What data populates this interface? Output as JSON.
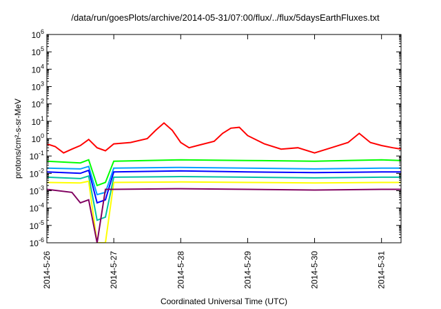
{
  "chart_data": {
    "type": "line",
    "title": "/data/run/goesPlots/archive/2014-05-31/07:00/flux/../flux/5daysEarthFluxes.txt",
    "ylabel": "protons/cm²-s-sr-MeV",
    "xlabel": "Coordinated Universal Time (UTC)",
    "y_scale": "log",
    "ylim": [
      1e-06,
      1000000.0
    ],
    "y_ticks": [
      {
        "value": 1e-06,
        "base": "10",
        "exp": "-6"
      },
      {
        "value": 1e-05,
        "base": "10",
        "exp": "-5"
      },
      {
        "value": 0.0001,
        "base": "10",
        "exp": "-4"
      },
      {
        "value": 0.001,
        "base": "10",
        "exp": "-3"
      },
      {
        "value": 0.01,
        "base": "10",
        "exp": "-2"
      },
      {
        "value": 0.1,
        "base": "10",
        "exp": "-1"
      },
      {
        "value": 1.0,
        "base": "10",
        "exp": "0"
      },
      {
        "value": 10.0,
        "base": "10",
        "exp": "1"
      },
      {
        "value": 100.0,
        "base": "10",
        "exp": "2"
      },
      {
        "value": 1000.0,
        "base": "10",
        "exp": "3"
      },
      {
        "value": 10000.0,
        "base": "10",
        "exp": "4"
      },
      {
        "value": 100000.0,
        "base": "10",
        "exp": "5"
      },
      {
        "value": 1000000.0,
        "base": "10",
        "exp": "6"
      }
    ],
    "x_domain": [
      "2014-05-26",
      "2014-05-31T07:00"
    ],
    "x_ticks": [
      "2014-5-26",
      "2014-5-27",
      "2014-5-28",
      "2014-5-29",
      "2014-5-30",
      "2014-5-31"
    ],
    "grid": false,
    "legend": "none",
    "series": [
      {
        "color": "#ff0000",
        "data": [
          [
            "2014-05-26T00:00",
            0.5
          ],
          [
            "2014-05-26T03:00",
            0.35
          ],
          [
            "2014-05-26T06:00",
            0.15
          ],
          [
            "2014-05-26T09:00",
            0.25
          ],
          [
            "2014-05-26T12:00",
            0.4
          ],
          [
            "2014-05-26T15:00",
            0.9
          ],
          [
            "2014-05-26T18:00",
            0.3
          ],
          [
            "2014-05-26T21:00",
            0.2
          ],
          [
            "2014-05-27T00:00",
            0.5
          ],
          [
            "2014-05-27T06:00",
            0.6
          ],
          [
            "2014-05-27T12:00",
            1.0
          ],
          [
            "2014-05-27T15:00",
            3.0
          ],
          [
            "2014-05-27T18:00",
            8.0
          ],
          [
            "2014-05-27T21:00",
            3.0
          ],
          [
            "2014-05-28T00:00",
            0.6
          ],
          [
            "2014-05-28T03:00",
            0.3
          ],
          [
            "2014-05-28T06:00",
            0.4
          ],
          [
            "2014-05-28T12:00",
            0.7
          ],
          [
            "2014-05-28T15:00",
            2.0
          ],
          [
            "2014-05-28T18:00",
            4.0
          ],
          [
            "2014-05-28T21:00",
            4.5
          ],
          [
            "2014-05-29T00:00",
            1.5
          ],
          [
            "2014-05-29T06:00",
            0.5
          ],
          [
            "2014-05-29T12:00",
            0.25
          ],
          [
            "2014-05-29T18:00",
            0.3
          ],
          [
            "2014-05-30T00:00",
            0.15
          ],
          [
            "2014-05-30T06:00",
            0.3
          ],
          [
            "2014-05-30T12:00",
            0.6
          ],
          [
            "2014-05-30T16:00",
            2.0
          ],
          [
            "2014-05-30T20:00",
            0.6
          ],
          [
            "2014-05-31T00:00",
            0.4
          ],
          [
            "2014-05-31T04:00",
            0.3
          ],
          [
            "2014-05-31T07:00",
            0.25
          ]
        ]
      },
      {
        "color": "#00ff00",
        "data": [
          [
            "2014-05-26T00:00",
            0.05
          ],
          [
            "2014-05-26T12:00",
            0.04
          ],
          [
            "2014-05-26T15:00",
            0.06
          ],
          [
            "2014-05-26T18:00",
            0.002
          ],
          [
            "2014-05-26T21:00",
            0.003
          ],
          [
            "2014-05-27T00:00",
            0.05
          ],
          [
            "2014-05-28T00:00",
            0.06
          ],
          [
            "2014-05-29T00:00",
            0.055
          ],
          [
            "2014-05-30T00:00",
            0.05
          ],
          [
            "2014-05-31T00:00",
            0.06
          ],
          [
            "2014-05-31T07:00",
            0.055
          ]
        ]
      },
      {
        "color": "#00a0ff",
        "data": [
          [
            "2014-05-26T00:00",
            0.02
          ],
          [
            "2014-05-26T12:00",
            0.018
          ],
          [
            "2014-05-26T15:00",
            0.025
          ],
          [
            "2014-05-26T18:00",
            0.0006
          ],
          [
            "2014-05-26T21:00",
            0.0008
          ],
          [
            "2014-05-27T00:00",
            0.02
          ],
          [
            "2014-05-28T00:00",
            0.022
          ],
          [
            "2014-05-29T00:00",
            0.02
          ],
          [
            "2014-05-30T00:00",
            0.018
          ],
          [
            "2014-05-31T00:00",
            0.02
          ],
          [
            "2014-05-31T07:00",
            0.02
          ]
        ]
      },
      {
        "color": "#0000ff",
        "data": [
          [
            "2014-05-26T00:00",
            0.012
          ],
          [
            "2014-05-26T12:00",
            0.01
          ],
          [
            "2014-05-26T15:00",
            0.015
          ],
          [
            "2014-05-26T18:00",
            0.0002
          ],
          [
            "2014-05-26T21:00",
            0.0003
          ],
          [
            "2014-05-27T00:00",
            0.012
          ],
          [
            "2014-05-28T00:00",
            0.014
          ],
          [
            "2014-05-29T00:00",
            0.012
          ],
          [
            "2014-05-30T00:00",
            0.011
          ],
          [
            "2014-05-31T00:00",
            0.012
          ],
          [
            "2014-05-31T07:00",
            0.012
          ]
        ]
      },
      {
        "color": "#00c0a0",
        "data": [
          [
            "2014-05-26T00:00",
            0.006
          ],
          [
            "2014-05-26T12:00",
            0.005
          ],
          [
            "2014-05-26T15:00",
            0.007
          ],
          [
            "2014-05-26T18:00",
            2e-05
          ],
          [
            "2014-05-26T21:00",
            3e-05
          ],
          [
            "2014-05-27T00:00",
            0.006
          ],
          [
            "2014-05-28T00:00",
            0.0065
          ],
          [
            "2014-05-29T00:00",
            0.006
          ],
          [
            "2014-05-30T00:00",
            0.0055
          ],
          [
            "2014-05-31T00:00",
            0.006
          ],
          [
            "2014-05-31T07:00",
            0.006
          ]
        ]
      },
      {
        "color": "#ffff00",
        "data": [
          [
            "2014-05-26T00:00",
            0.003
          ],
          [
            "2014-05-26T12:00",
            0.0028
          ],
          [
            "2014-05-26T15:00",
            0.0035
          ],
          [
            "2014-05-26T18:00",
            1e-06
          ],
          [
            "2014-05-26T21:00",
            1e-06
          ],
          [
            "2014-05-27T00:00",
            0.003
          ],
          [
            "2014-05-28T00:00",
            0.0032
          ],
          [
            "2014-05-29T00:00",
            0.003
          ],
          [
            "2014-05-30T00:00",
            0.0028
          ],
          [
            "2014-05-31T00:00",
            0.003
          ],
          [
            "2014-05-31T07:00",
            0.003
          ]
        ]
      },
      {
        "color": "#800060",
        "data": [
          [
            "2014-05-26T00:00",
            0.0012
          ],
          [
            "2014-05-26T09:00",
            0.0008
          ],
          [
            "2014-05-26T12:00",
            0.0002
          ],
          [
            "2014-05-26T15:00",
            0.0003
          ],
          [
            "2014-05-26T18:00",
            1e-06
          ],
          [
            "2014-05-26T21:00",
            0.0012
          ],
          [
            "2014-05-27T00:00",
            0.0012
          ],
          [
            "2014-05-28T00:00",
            0.0013
          ],
          [
            "2014-05-29T00:00",
            0.0012
          ],
          [
            "2014-05-30T00:00",
            0.0011
          ],
          [
            "2014-05-31T00:00",
            0.0012
          ],
          [
            "2014-05-31T07:00",
            0.0012
          ]
        ]
      }
    ]
  }
}
